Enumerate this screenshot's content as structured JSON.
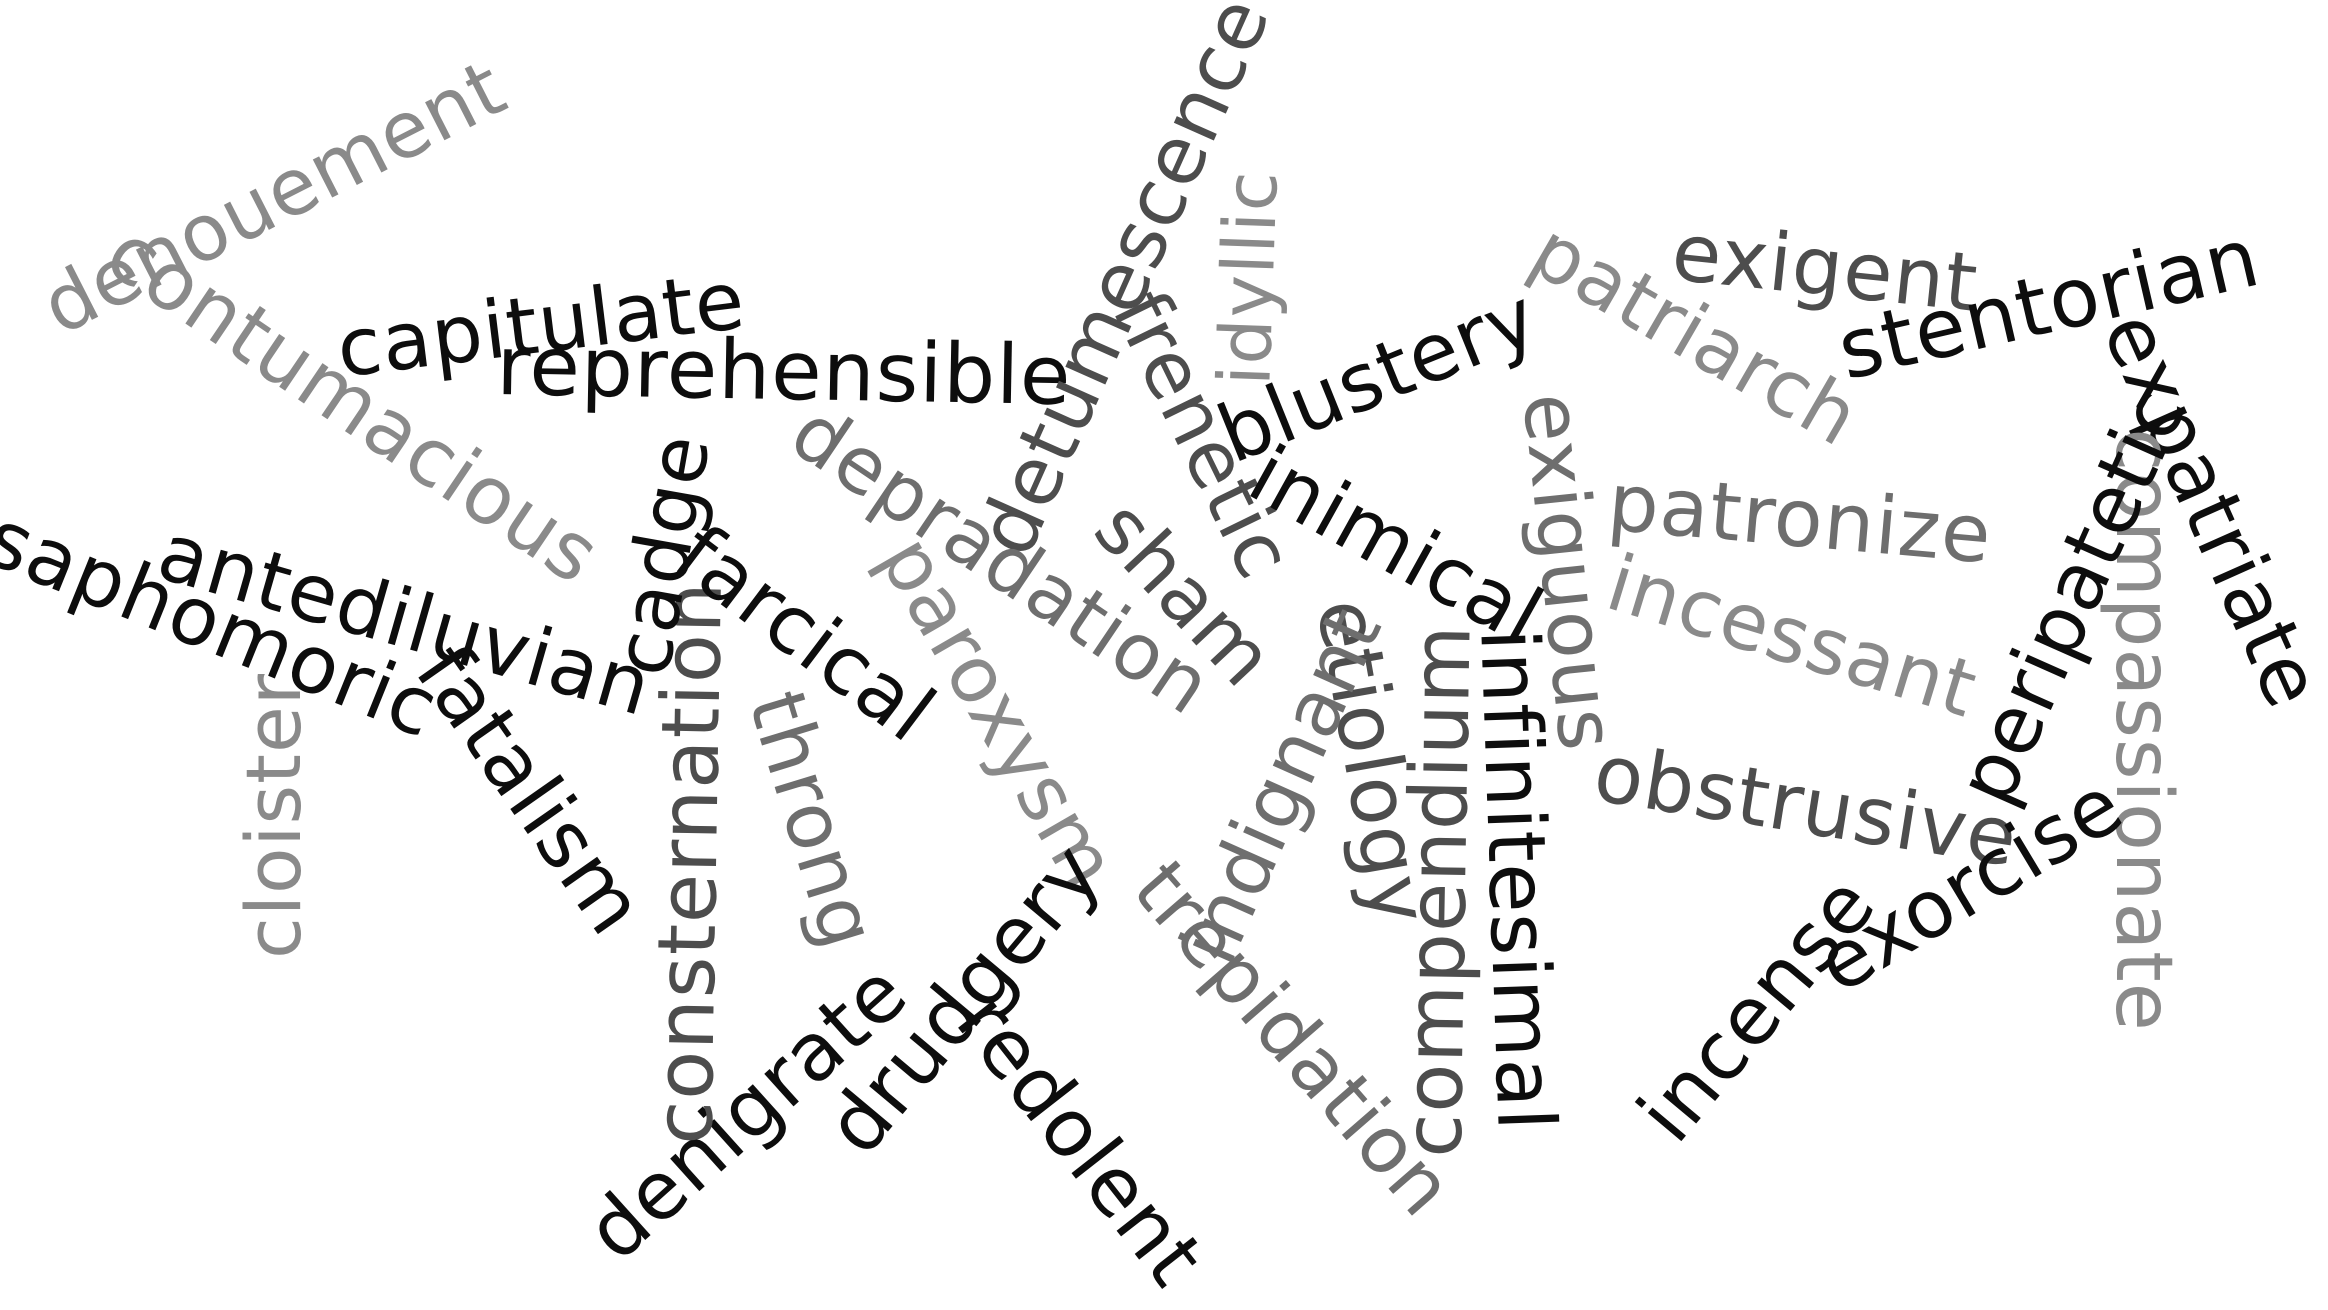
{
  "words": {
    "denouement": "denouement",
    "contumacious": "contumacious",
    "capitulate": "capitulate",
    "reprehensible": "reprehensible",
    "detumescence": "detumescence",
    "idyllic": "idyllic",
    "frenetic": "frenetic",
    "blustery": "blustery",
    "patriarch": "patriarch",
    "exigent": "exigent",
    "stentorian": "stentorian",
    "expatriate": "expatriate",
    "compassionate": "compassionate",
    "peripatetic": "peripatetic",
    "patronize": "patronize",
    "incessant": "incessant",
    "exiguous": "exiguous",
    "inimical": "inimical",
    "obstrusive": "obstrusive",
    "exorcise": "exorcise",
    "incense": "incense",
    "infinitesimal": "infinitesimal",
    "compendium": "compendium",
    "etiology": "etiology",
    "indignant": "indignant",
    "trepidation": "trepidation",
    "sham": "sham",
    "depradation": "depradation",
    "paroxysm": "paroxysm",
    "drudgery": "drudgery",
    "redolent": "redolent",
    "denigrate": "denigrate",
    "consternation": "consternation",
    "throng": "throng",
    "farcical": "farcical",
    "cadge": "cadge",
    "antediluvian": "antediluvian",
    "saphomoric": "saphomoric",
    "fatalism": "fatalism",
    "cloister": "cloister"
  },
  "colors": {
    "black": "#0d0d0d",
    "dark_gray": "#4d4d4d",
    "medium_gray": "#6e6e6e",
    "light_gray": "#8a8a8a",
    "background": "#ffffff"
  }
}
